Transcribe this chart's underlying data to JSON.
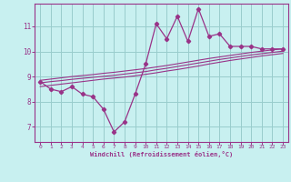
{
  "hours": [
    0,
    1,
    2,
    3,
    4,
    5,
    6,
    7,
    8,
    9,
    10,
    11,
    12,
    13,
    14,
    15,
    16,
    17,
    18,
    19,
    20,
    21,
    22,
    23
  ],
  "windchill": [
    8.8,
    8.5,
    8.4,
    8.6,
    8.3,
    8.2,
    7.7,
    6.8,
    7.2,
    8.3,
    9.5,
    11.1,
    10.5,
    11.4,
    10.4,
    11.7,
    10.6,
    10.7,
    10.2,
    10.2,
    10.2,
    10.1,
    10.1,
    10.1
  ],
  "fit_low": [
    8.6,
    8.65,
    8.7,
    8.75,
    8.8,
    8.85,
    8.9,
    8.94,
    8.98,
    9.03,
    9.09,
    9.15,
    9.22,
    9.28,
    9.35,
    9.42,
    9.5,
    9.57,
    9.64,
    9.7,
    9.76,
    9.82,
    9.87,
    9.92
  ],
  "fit_mid": [
    8.75,
    8.8,
    8.84,
    8.89,
    8.93,
    8.97,
    9.01,
    9.05,
    9.1,
    9.15,
    9.2,
    9.27,
    9.33,
    9.4,
    9.47,
    9.54,
    9.61,
    9.68,
    9.74,
    9.8,
    9.86,
    9.91,
    9.96,
    10.01
  ],
  "fit_high": [
    8.85,
    8.9,
    8.95,
    9.0,
    9.04,
    9.08,
    9.13,
    9.17,
    9.22,
    9.27,
    9.32,
    9.38,
    9.44,
    9.51,
    9.58,
    9.65,
    9.72,
    9.78,
    9.84,
    9.9,
    9.96,
    10.01,
    10.06,
    10.1
  ],
  "line_color": "#993388",
  "fit_color": "#993388",
  "bg_color": "#c8f0f0",
  "grid_color": "#99cccc",
  "xlabel": "Windchill (Refroidissement éolien,°C)",
  "yticks": [
    7,
    8,
    9,
    10,
    11
  ],
  "xticks": [
    0,
    1,
    2,
    3,
    4,
    5,
    6,
    7,
    8,
    9,
    10,
    11,
    12,
    13,
    14,
    15,
    16,
    17,
    18,
    19,
    20,
    21,
    22,
    23
  ],
  "ylim": [
    6.4,
    11.9
  ],
  "xlim": [
    -0.5,
    23.5
  ]
}
